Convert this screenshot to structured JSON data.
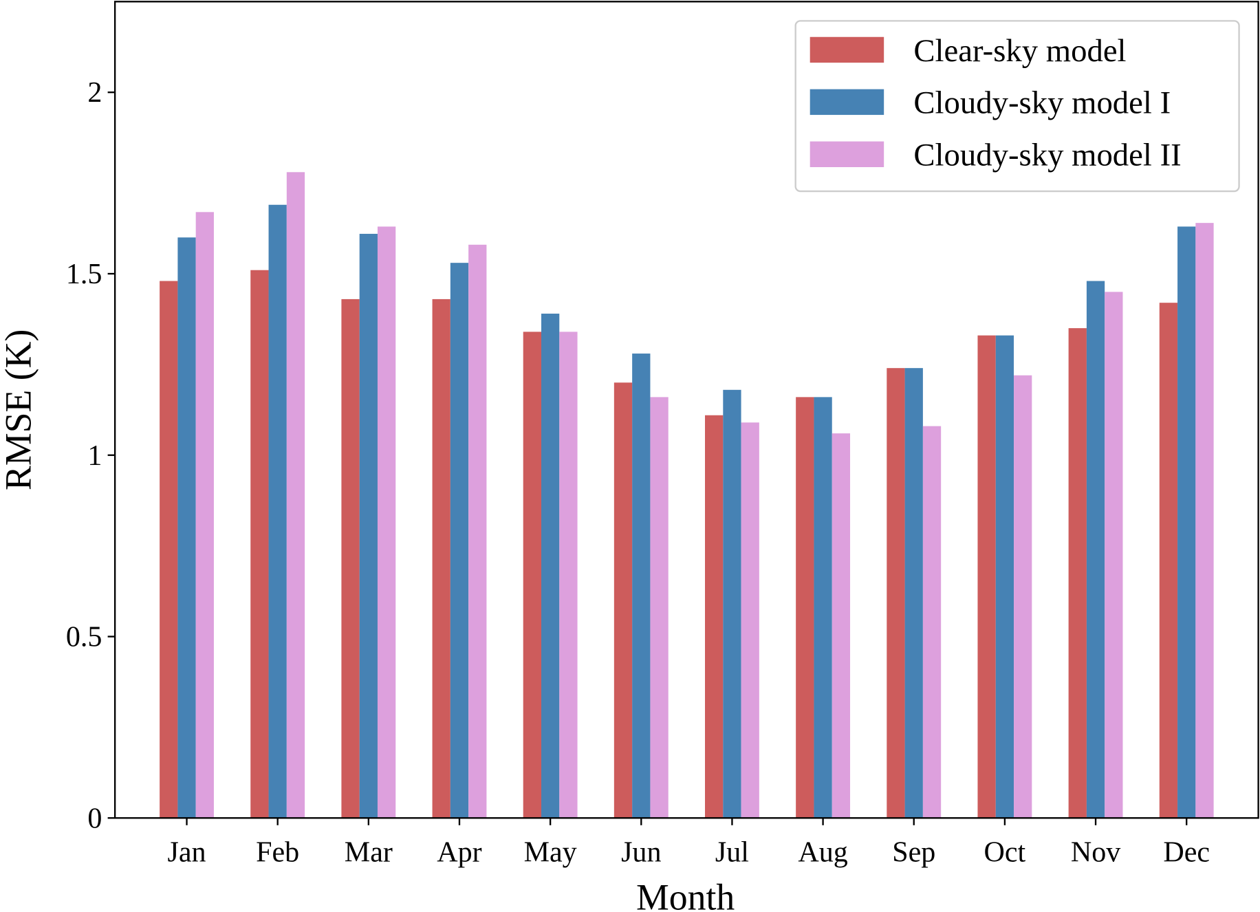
{
  "chart_data": {
    "type": "bar",
    "x_label": "Month",
    "y_label": "RMSE (K)",
    "categories": [
      "Jan",
      "Feb",
      "Mar",
      "Apr",
      "May",
      "Jun",
      "Jul",
      "Aug",
      "Sep",
      "Oct",
      "Nov",
      "Dec"
    ],
    "series": [
      {
        "name": "Clear-sky model",
        "color": "#cd5c5c",
        "values": [
          1.48,
          1.51,
          1.43,
          1.43,
          1.34,
          1.2,
          1.11,
          1.16,
          1.24,
          1.33,
          1.35,
          1.42
        ]
      },
      {
        "name": "Cloudy-sky model I",
        "color": "#4682b4",
        "values": [
          1.6,
          1.69,
          1.61,
          1.53,
          1.39,
          1.28,
          1.18,
          1.16,
          1.24,
          1.33,
          1.48,
          1.63
        ]
      },
      {
        "name": "Cloudy-sky model II",
        "color": "#dda0dd",
        "values": [
          1.67,
          1.78,
          1.63,
          1.58,
          1.34,
          1.16,
          1.09,
          1.06,
          1.08,
          1.22,
          1.45,
          1.64
        ]
      }
    ],
    "ylim": [
      0,
      2.25
    ],
    "yticks": [
      0,
      0.5,
      1,
      1.5,
      2
    ],
    "legend": "upper right"
  }
}
